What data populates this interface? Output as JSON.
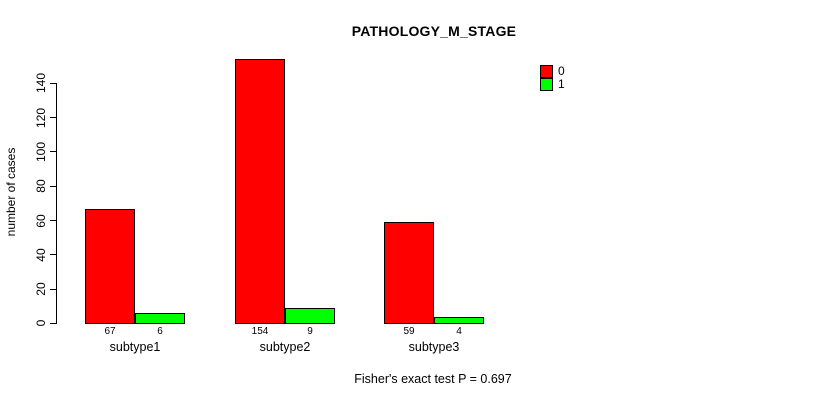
{
  "title": "PATHOLOGY_M_STAGE",
  "ylabel": "number of cases",
  "footer": "Fisher's exact test P = 0.697",
  "legend": [
    {
      "label": "0",
      "color": "#ff0000"
    },
    {
      "label": "1",
      "color": "#00ff00"
    }
  ],
  "chart_data": {
    "type": "bar",
    "title": "PATHOLOGY_M_STAGE",
    "xlabel": "",
    "ylabel": "number of cases",
    "categories": [
      "subtype1",
      "subtype2",
      "subtype3"
    ],
    "series": [
      {
        "name": "0",
        "color": "#ff0000",
        "values": [
          67,
          154,
          59
        ]
      },
      {
        "name": "1",
        "color": "#00ff00",
        "values": [
          6,
          9,
          4
        ]
      }
    ],
    "bar_value_labels": [
      [
        "67",
        "154",
        "59"
      ],
      [
        "6",
        "9",
        "4"
      ]
    ],
    "ylim": [
      0,
      140
    ],
    "yticks": [
      0,
      20,
      40,
      60,
      80,
      100,
      120,
      140
    ],
    "grid": false,
    "legend_position": "top-right",
    "annotation": "Fisher's exact test P = 0.697"
  }
}
